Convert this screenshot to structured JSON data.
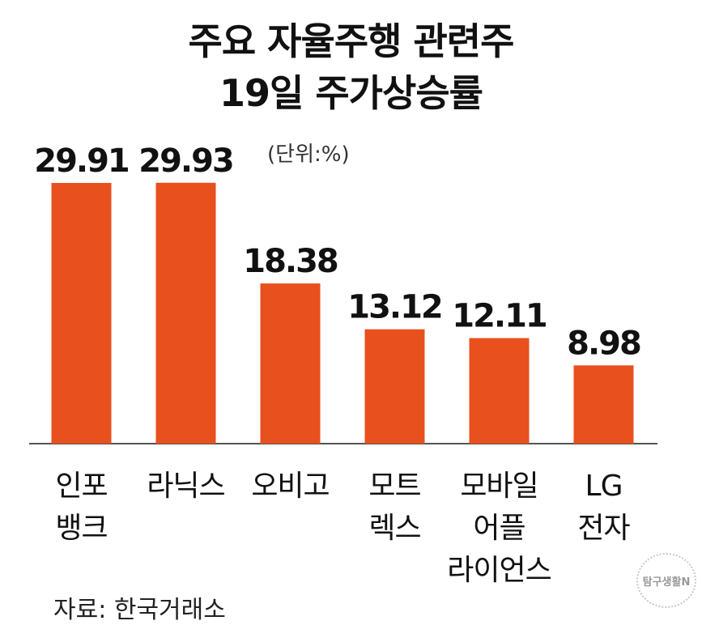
{
  "header": {
    "title_line1": "주요 자율주행 관련주",
    "title_line2": "19일 주가상승률",
    "unit": "(단위:%)"
  },
  "footer": {
    "source": "자료: 한국거래소",
    "badge": "탐구생활N"
  },
  "colors": {
    "bar": "#e8501e",
    "axis": "#555555"
  },
  "chart_data": {
    "type": "bar",
    "title": "주요 자율주행 관련주 19일 주가상승률",
    "unit": "(단위:%)",
    "categories": [
      [
        "인포",
        "뱅크"
      ],
      [
        "라닉스"
      ],
      [
        "오비고"
      ],
      [
        "모트",
        "렉스"
      ],
      [
        "모바일",
        "어플",
        "라이언스"
      ],
      [
        "LG",
        "전자"
      ]
    ],
    "values": [
      29.91,
      29.93,
      18.38,
      13.12,
      12.11,
      8.98
    ],
    "value_labels": [
      "29.91",
      "29.93",
      "18.38",
      "13.12",
      "12.11",
      "8.98"
    ],
    "ylim": [
      0,
      30
    ],
    "grid": false,
    "legend": "none"
  }
}
